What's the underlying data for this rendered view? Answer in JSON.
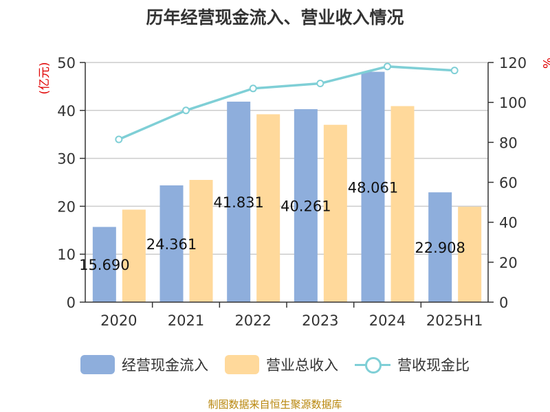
{
  "title": "历年经营现金流入、营业收入情况",
  "source": "制图数据来自恒生聚源数据库",
  "colors": {
    "cash_inflow": "#8EAEDC",
    "revenue": "#FFD99B",
    "ratio_line": "#7FCFD6",
    "left_unit": "#e00000",
    "axis_text": "#333333",
    "grid": "#cccccc"
  },
  "legend": {
    "cash_inflow": "经营现金流入",
    "revenue": "营业总收入",
    "ratio": "营收现金比"
  },
  "chart_data": {
    "type": "bar",
    "categories": [
      "2020",
      "2021",
      "2022",
      "2023",
      "2024",
      "2025H1"
    ],
    "series": [
      {
        "name": "经营现金流入",
        "type": "bar",
        "axis": "left",
        "values": [
          15.69,
          24.36,
          41.83,
          40.26,
          48.06,
          22.908
        ],
        "data_labels": [
          "15.690",
          "24.361",
          "41.831",
          "40.261",
          "48.061",
          "22.908"
        ]
      },
      {
        "name": "营业总收入",
        "type": "bar",
        "axis": "left",
        "values": [
          19.3,
          25.5,
          39.2,
          37.0,
          40.9,
          19.9
        ]
      },
      {
        "name": "营收现金比",
        "type": "line",
        "axis": "right",
        "values": [
          81.5,
          96.0,
          107.0,
          109.5,
          118.0,
          116.0
        ]
      }
    ],
    "ylabel": "(亿元)",
    "y2label": "%",
    "ylim": [
      0,
      50
    ],
    "y2lim": [
      0,
      120
    ],
    "yticks": [
      0,
      10,
      20,
      30,
      40,
      50
    ],
    "y2ticks": [
      0,
      20,
      40,
      60,
      80,
      100,
      120
    ],
    "grid": true,
    "legend_position": "bottom"
  }
}
